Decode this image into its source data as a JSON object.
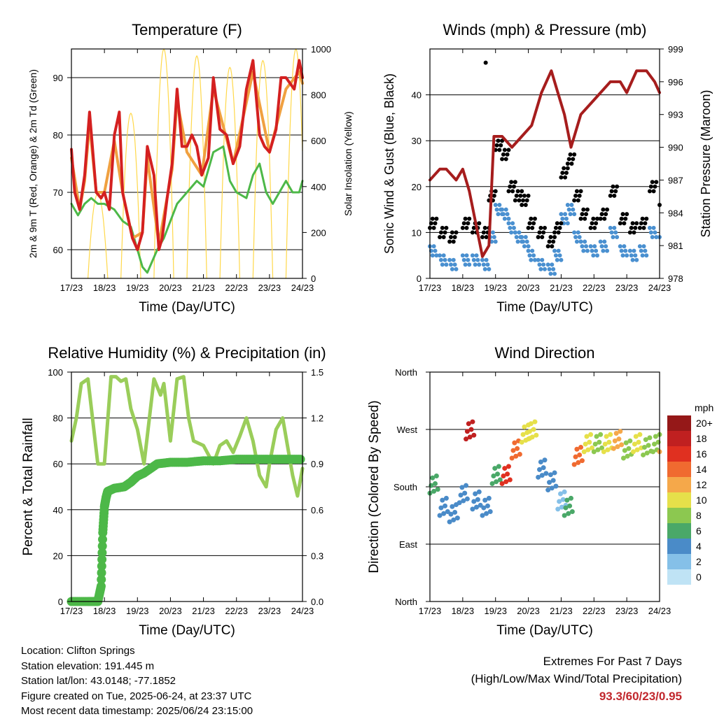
{
  "chart_data": [
    {
      "type": "line",
      "title": "Temperature (F)",
      "xlabel": "Time (Day/UTC)",
      "ylabel": "2m & 9m T (Red, Orange) & 2m Td (Green)",
      "ylabel_right": "Solar Insolation (Yellow)",
      "x_ticks": [
        "17/23",
        "18/23",
        "19/23",
        "20/23",
        "21/23",
        "22/23",
        "23/23",
        "24/23"
      ],
      "ylim": [
        55,
        95
      ],
      "y_ticks": [
        60,
        70,
        80,
        90
      ],
      "ylim_right": [
        0,
        1000
      ],
      "y_ticks_right": [
        0,
        200,
        400,
        600,
        800,
        1000
      ],
      "grid": "horizontal",
      "series": [
        {
          "color": "#d42020",
          "x": [
            0,
            0.1,
            0.25,
            0.4,
            0.55,
            0.75,
            0.9,
            1.0,
            1.15,
            1.3,
            1.45,
            1.55,
            1.7,
            1.85,
            2.0,
            2.15,
            2.3,
            2.5,
            2.65,
            2.75,
            2.9,
            3.05,
            3.2,
            3.35,
            3.5,
            3.65,
            3.8,
            3.95,
            4.15,
            4.3,
            4.5,
            4.7,
            4.9,
            5.1,
            5.3,
            5.5,
            5.7,
            5.85,
            6.0,
            6.2,
            6.35,
            6.5,
            6.75,
            6.9,
            7.0
          ],
          "values": [
            77.5,
            70,
            67,
            73,
            84,
            70,
            69,
            70,
            67,
            80,
            84,
            70,
            66,
            62,
            60,
            63,
            78,
            73,
            60,
            62,
            69,
            75,
            88,
            78,
            78,
            80,
            78,
            73,
            76,
            90,
            81,
            80,
            75,
            78,
            88,
            93,
            80,
            78,
            77,
            81,
            90,
            90,
            88,
            93,
            90
          ]
        },
        {
          "color": "#f0a040",
          "x": [
            0,
            0.25,
            0.4,
            0.55,
            0.75,
            1.0,
            1.3,
            1.55,
            1.85,
            2.15,
            2.3,
            2.65,
            3.05,
            3.2,
            3.5,
            3.95,
            4.3,
            4.9,
            5.5,
            6.0,
            6.5,
            6.9,
            7.0
          ],
          "values": [
            76,
            67,
            72,
            82,
            70,
            70,
            79,
            70,
            62,
            63,
            76,
            61,
            74,
            86,
            77,
            73,
            88,
            75,
            91,
            77,
            88,
            91,
            89
          ]
        },
        {
          "color": "#4db848",
          "x": [
            0,
            0.2,
            0.4,
            0.6,
            0.8,
            1.0,
            1.3,
            1.55,
            1.8,
            2.0,
            2.15,
            2.3,
            2.45,
            2.6,
            2.8,
            3.0,
            3.2,
            3.5,
            3.8,
            4.0,
            4.3,
            4.6,
            4.8,
            5.0,
            5.3,
            5.5,
            5.7,
            5.9,
            6.1,
            6.3,
            6.5,
            6.7,
            6.9,
            7.0
          ],
          "values": [
            68,
            66,
            68,
            69,
            68,
            68,
            67,
            65,
            64,
            60,
            57,
            56,
            58,
            60,
            62,
            65,
            68,
            70,
            72,
            71,
            77,
            78,
            72,
            70,
            69,
            73,
            75,
            70,
            68,
            70,
            72,
            70,
            70,
            72
          ]
        }
      ],
      "insolation_peaks": [
        {
          "day_offset": 0.8,
          "peak": 370
        },
        {
          "day_offset": 1.8,
          "peak": 720
        },
        {
          "day_offset": 2.8,
          "peak": 1000
        },
        {
          "day_offset": 3.8,
          "peak": 970
        },
        {
          "day_offset": 4.8,
          "peak": 920
        },
        {
          "day_offset": 5.8,
          "peak": 950
        },
        {
          "day_offset": 6.8,
          "peak": 1000
        }
      ]
    },
    {
      "type": "scatter",
      "title": "Winds (mph) & Pressure (mb)",
      "xlabel": "Time (Day/UTC)",
      "ylabel": "Sonic Wind & Gust (Blue, Black)",
      "ylabel_right": "Station Pressure (Maroon)",
      "x_ticks": [
        "17/23",
        "18/23",
        "19/23",
        "20/23",
        "21/23",
        "22/23",
        "23/23",
        "24/23"
      ],
      "ylim": [
        0,
        50
      ],
      "y_ticks": [
        0,
        10,
        20,
        30,
        40
      ],
      "ylim_right": [
        978,
        999
      ],
      "y_ticks_right": [
        978,
        981,
        984,
        987,
        990,
        993,
        996,
        999
      ],
      "grid": "horizontal",
      "series": [
        {
          "color": "#000000",
          "x": [
            0,
            0.3,
            0.6,
            1.0,
            1.3,
            1.6,
            1.8,
            2.0,
            2.2,
            2.4,
            2.6,
            2.8,
            3.0,
            3.3,
            3.6,
            3.8,
            4.0,
            4.2,
            4.4,
            4.6,
            4.9,
            5.2,
            5.5,
            5.8,
            6.1,
            6.4,
            6.7,
            7.0
          ],
          "values": [
            12,
            10,
            9,
            12,
            11,
            10,
            18,
            29,
            27,
            20,
            18,
            17,
            12,
            10,
            8,
            11,
            23,
            26,
            18,
            14,
            12,
            14,
            19,
            13,
            11,
            12,
            20,
            17
          ]
        },
        {
          "color": "#4a90d0",
          "x": [
            0,
            0.3,
            0.6,
            1.0,
            1.3,
            1.6,
            1.8,
            2.0,
            2.2,
            2.4,
            2.6,
            2.8,
            3.0,
            3.3,
            3.6,
            3.8,
            4.0,
            4.2,
            4.4,
            4.6,
            4.9,
            5.2,
            5.5,
            5.8,
            6.1,
            6.4,
            6.7,
            7.0
          ],
          "values": [
            7,
            5,
            4,
            5,
            5,
            4,
            10,
            16,
            15,
            12,
            10,
            9,
            6,
            4,
            3,
            6,
            14,
            16,
            10,
            8,
            7,
            8,
            11,
            7,
            6,
            7,
            11,
            9
          ]
        },
        {
          "color": "#a61d1d",
          "x": [
            0,
            0.3,
            0.5,
            0.8,
            1.0,
            1.2,
            1.4,
            1.6,
            1.8,
            1.95,
            2.2,
            2.5,
            2.8,
            3.1,
            3.4,
            3.7,
            3.9,
            4.1,
            4.3,
            4.6,
            4.9,
            5.2,
            5.5,
            5.8,
            6.0,
            6.3,
            6.6,
            6.85,
            7.0
          ],
          "values": [
            987,
            988,
            988,
            987,
            988,
            986,
            983,
            980,
            981,
            991,
            991,
            990,
            991,
            992,
            995,
            997,
            995,
            993,
            990,
            993,
            994,
            995,
            996,
            996,
            995,
            997,
            997,
            996,
            995
          ]
        }
      ],
      "max_gust_point": {
        "x": 1.7,
        "value": 47
      }
    },
    {
      "type": "line",
      "title": "Relative Humidity (%) & Precipitation (in)",
      "xlabel": "Time (Day/UTC)",
      "ylabel": "Percent & Total Rainfall",
      "x_ticks": [
        "17/23",
        "18/23",
        "19/23",
        "20/23",
        "21/23",
        "22/23",
        "23/23",
        "24/23"
      ],
      "ylim": [
        0,
        100
      ],
      "y_ticks": [
        0,
        20,
        40,
        60,
        80,
        100
      ],
      "ylim_right": [
        0,
        1.5
      ],
      "y_ticks_right": [
        "0.0",
        "0.3",
        "0.6",
        "0.9",
        "1.2",
        "1.5"
      ],
      "grid": "horizontal",
      "series": [
        {
          "color": "#9acd5a",
          "x": [
            0,
            0.15,
            0.3,
            0.5,
            0.8,
            1.0,
            1.2,
            1.35,
            1.5,
            1.65,
            1.8,
            2.0,
            2.2,
            2.5,
            2.7,
            2.8,
            3.0,
            3.2,
            3.4,
            3.55,
            3.7,
            4.0,
            4.3,
            4.5,
            4.7,
            4.9,
            5.1,
            5.3,
            5.5,
            5.7,
            5.9,
            6.0,
            6.2,
            6.4,
            6.7,
            6.85,
            7.0
          ],
          "values": [
            70,
            80,
            95,
            97,
            60,
            60,
            98,
            98,
            96,
            97,
            84,
            75,
            60,
            97,
            90,
            95,
            70,
            97,
            98,
            80,
            70,
            68,
            60,
            68,
            70,
            65,
            72,
            80,
            70,
            55,
            50,
            60,
            75,
            80,
            55,
            46,
            58
          ]
        },
        {
          "color": "#4db848",
          "x": [
            0,
            0.5,
            0.8,
            0.9,
            0.95,
            1.0,
            1.05,
            1.1,
            1.3,
            1.6,
            1.8,
            2.0,
            2.2,
            2.6,
            3.0,
            3.5,
            4.0,
            4.5,
            5.0,
            5.5,
            6.0,
            6.5,
            7.0
          ],
          "values": [
            0,
            0,
            0,
            0.1,
            0.45,
            0.62,
            0.68,
            0.72,
            0.74,
            0.75,
            0.78,
            0.82,
            0.84,
            0.9,
            0.91,
            0.91,
            0.92,
            0.92,
            0.93,
            0.93,
            0.93,
            0.93,
            0.93
          ]
        }
      ]
    },
    {
      "type": "scatter",
      "title": "Wind Direction",
      "xlabel": "Time (Day/UTC)",
      "ylabel": "Direction (Colored By Speed)",
      "x_ticks": [
        "17/23",
        "18/23",
        "19/23",
        "20/23",
        "21/23",
        "22/23",
        "23/23",
        "24/23"
      ],
      "y_ticks": [
        "North",
        "East",
        "South",
        "West",
        "North"
      ],
      "grid": "horizontal",
      "legend_title": "mph",
      "legend_labels": [
        "0",
        "2",
        "4",
        "6",
        "8",
        "10",
        "12",
        "14",
        "16",
        "18",
        "20+"
      ],
      "legend_colors": [
        "#bfe3f5",
        "#85c0e8",
        "#4a8bc8",
        "#4aa868",
        "#8cc850",
        "#e6e04a",
        "#f5a84a",
        "#f06a30",
        "#e03020",
        "#c02020",
        "#951818"
      ],
      "series": [
        {
          "x": [
            0,
            0.3,
            0.6,
            0.9,
            1.1,
            1.3,
            1.6,
            1.9,
            2.2,
            2.5,
            2.8,
            3.0,
            3.3,
            3.6,
            3.9,
            4.1,
            4.4,
            4.7,
            5.0,
            5.3,
            5.6,
            5.9,
            6.2,
            6.5,
            6.8,
            7.0
          ],
          "values": [
            185,
            150,
            140,
            170,
            270,
            160,
            150,
            200,
            200,
            240,
            265,
            270,
            210,
            190,
            160,
            150,
            230,
            250,
            250,
            250,
            255,
            240,
            250,
            245,
            250,
            250
          ],
          "speed": [
            6,
            4,
            3,
            4,
            18,
            4,
            3,
            5,
            16,
            14,
            10,
            9,
            4,
            3,
            2,
            6,
            14,
            10,
            8,
            10,
            12,
            8,
            10,
            8,
            8,
            12
          ]
        }
      ]
    }
  ],
  "info": {
    "location": "Location: Clifton Springs",
    "elevation": "Station elevation: 191.445 m",
    "latlon": "Station lat/lon: 43.0148; -77.1852",
    "created": "Figure created on Tue, 2025-06-24, at 23:37 UTC",
    "recent": "Most recent data timestamp: 2025/06/24 23:15:00"
  },
  "extremes": {
    "title": "Extremes For Past 7 Days",
    "subtitle": "(High/Low/Max Wind/Total Precipitation)",
    "values": "93.3/60/23/0.95"
  }
}
